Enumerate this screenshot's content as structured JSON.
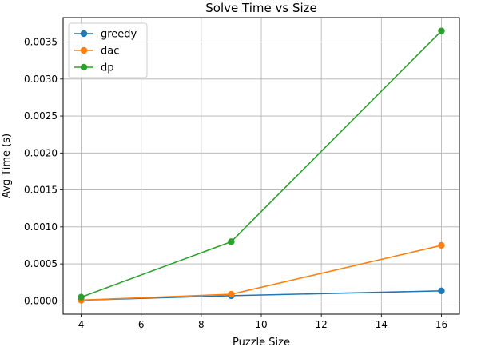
{
  "chart_data": {
    "type": "line",
    "title": "Solve Time vs Size",
    "xlabel": "Puzzle Size",
    "ylabel": "Avg Time (s)",
    "x": [
      4,
      9,
      16
    ],
    "xlim": [
      3.4,
      16.6
    ],
    "ylim": [
      -0.00018,
      0.00383
    ],
    "xticks": [
      4,
      6,
      8,
      10,
      12,
      14,
      16
    ],
    "yticks": [
      0.0,
      0.0005,
      0.001,
      0.0015,
      0.002,
      0.0025,
      0.003,
      0.0035
    ],
    "ytick_labels": [
      "0.0000",
      "0.0005",
      "0.0010",
      "0.0015",
      "0.0020",
      "0.0025",
      "0.0030",
      "0.0035"
    ],
    "grid": true,
    "legend_position": "top-left",
    "series": [
      {
        "name": "greedy",
        "color": "#1f77b4",
        "values": [
          1e-05,
          7e-05,
          0.000135
        ]
      },
      {
        "name": "dac",
        "color": "#ff7f0e",
        "values": [
          1e-05,
          9e-05,
          0.00075
        ]
      },
      {
        "name": "dp",
        "color": "#2ca02c",
        "values": [
          5e-05,
          0.0008,
          0.00365
        ]
      }
    ]
  }
}
